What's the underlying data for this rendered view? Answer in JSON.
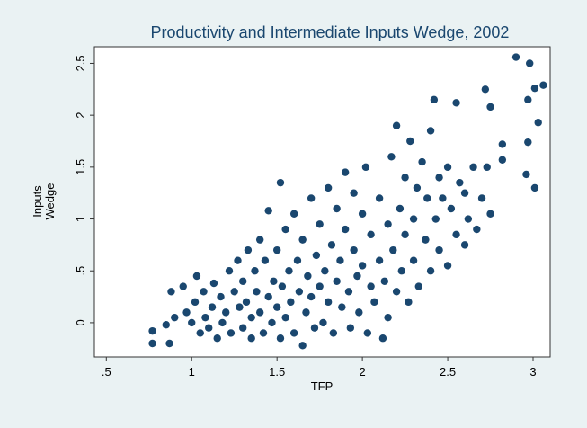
{
  "chart_data": {
    "type": "scatter",
    "title": "Productivity and Intermediate Inputs Wedge, 2002",
    "xlabel": "TFP",
    "ylabel_lines": [
      "Inputs",
      "Wedge"
    ],
    "color": "#1a476f",
    "xlim": [
      0.43,
      3.1
    ],
    "ylim": [
      -0.33,
      2.66
    ],
    "xticks": [
      {
        "value": 0.5,
        "label": ".5"
      },
      1,
      1.5,
      2,
      2.5,
      3
    ],
    "yticks": [
      0,
      {
        "value": 0.5,
        "label": ".5"
      },
      1,
      1.5,
      2,
      2.5
    ],
    "x": [
      0.77,
      0.77,
      0.87,
      0.85,
      0.9,
      0.88,
      0.95,
      0.97,
      1.0,
      1.02,
      1.03,
      1.05,
      1.07,
      1.08,
      1.1,
      1.12,
      1.13,
      1.15,
      1.17,
      1.18,
      1.2,
      1.22,
      1.23,
      1.25,
      1.27,
      1.28,
      1.3,
      1.3,
      1.32,
      1.33,
      1.35,
      1.35,
      1.37,
      1.38,
      1.4,
      1.4,
      1.42,
      1.43,
      1.45,
      1.45,
      1.47,
      1.48,
      1.5,
      1.5,
      1.52,
      1.52,
      1.53,
      1.55,
      1.55,
      1.57,
      1.58,
      1.6,
      1.6,
      1.62,
      1.63,
      1.65,
      1.65,
      1.67,
      1.68,
      1.7,
      1.7,
      1.72,
      1.73,
      1.75,
      1.75,
      1.77,
      1.78,
      1.8,
      1.8,
      1.82,
      1.83,
      1.85,
      1.85,
      1.87,
      1.88,
      1.9,
      1.9,
      1.92,
      1.93,
      1.95,
      1.95,
      1.97,
      1.98,
      2.0,
      2.0,
      2.02,
      2.03,
      2.05,
      2.05,
      2.07,
      2.1,
      2.1,
      2.12,
      2.13,
      2.15,
      2.15,
      2.17,
      2.18,
      2.2,
      2.2,
      2.22,
      2.23,
      2.25,
      2.25,
      2.27,
      2.28,
      2.3,
      2.3,
      2.32,
      2.33,
      2.35,
      2.37,
      2.38,
      2.4,
      2.4,
      2.42,
      2.43,
      2.45,
      2.45,
      2.47,
      2.5,
      2.5,
      2.52,
      2.55,
      2.55,
      2.57,
      2.6,
      2.6,
      2.62,
      2.65,
      2.67,
      2.7,
      2.72,
      2.73,
      2.75,
      2.75,
      2.82,
      2.82,
      2.9,
      2.98,
      2.97,
      2.97,
      2.96,
      3.01,
      3.01,
      3.06,
      3.03
    ],
    "y": [
      -0.08,
      -0.2,
      -0.2,
      -0.02,
      0.05,
      0.3,
      0.35,
      0.1,
      0.0,
      0.2,
      0.45,
      -0.1,
      0.3,
      0.05,
      -0.05,
      0.15,
      0.38,
      -0.15,
      0.25,
      0.0,
      0.1,
      0.5,
      -0.1,
      0.3,
      0.6,
      0.15,
      -0.05,
      0.4,
      0.2,
      0.7,
      -0.15,
      0.05,
      0.5,
      0.3,
      0.1,
      0.8,
      -0.1,
      0.6,
      0.25,
      1.08,
      0.0,
      0.4,
      0.15,
      0.7,
      -0.15,
      1.35,
      0.35,
      0.9,
      0.05,
      0.5,
      0.2,
      1.05,
      -0.1,
      0.6,
      0.3,
      -0.22,
      0.8,
      0.1,
      0.45,
      1.2,
      0.25,
      -0.05,
      0.65,
      0.35,
      0.95,
      0.0,
      0.5,
      1.3,
      0.2,
      0.75,
      -0.1,
      0.4,
      1.1,
      0.6,
      0.15,
      1.45,
      0.9,
      0.3,
      -0.05,
      0.7,
      1.25,
      0.45,
      0.1,
      1.05,
      0.55,
      1.5,
      -0.1,
      0.35,
      0.85,
      0.2,
      1.2,
      0.6,
      -0.15,
      0.4,
      0.95,
      0.05,
      1.6,
      0.7,
      0.3,
      1.9,
      1.1,
      0.5,
      1.4,
      0.85,
      0.2,
      1.75,
      1.0,
      0.6,
      1.3,
      0.35,
      1.55,
      0.8,
      1.2,
      0.5,
      1.85,
      2.15,
      1.0,
      1.4,
      0.7,
      1.2,
      0.55,
      1.5,
      1.1,
      2.12,
      0.85,
      1.35,
      0.75,
      1.25,
      1.0,
      1.5,
      0.9,
      1.2,
      2.25,
      1.5,
      1.05,
      2.08,
      1.72,
      1.57,
      2.56,
      2.5,
      2.15,
      1.74,
      1.43,
      2.26,
      1.3,
      2.29,
      1.93
    ]
  }
}
